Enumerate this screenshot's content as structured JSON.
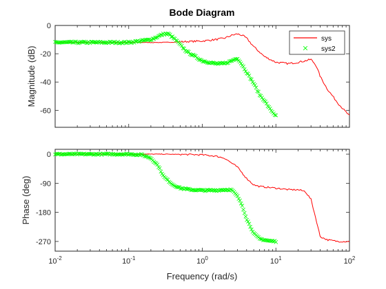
{
  "colors": {
    "sys": "#ff0000",
    "sys2": "#00ff00"
  },
  "chart_data": {
    "type": "line",
    "title": "Bode Diagram",
    "xlabel": "Frequency (rad/s)",
    "x_scale": "log",
    "xlim": [
      0.01,
      100
    ],
    "x_ticks": [
      0.01,
      0.1,
      1,
      10,
      100
    ],
    "x_tick_labels": [
      {
        "base": "10",
        "exp": "-2"
      },
      {
        "base": "10",
        "exp": "-1"
      },
      {
        "base": "10",
        "exp": "0"
      },
      {
        "base": "10",
        "exp": "1"
      },
      {
        "base": "10",
        "exp": "2"
      }
    ],
    "grid": false,
    "legend": {
      "placement": "top-right",
      "entries": [
        "sys",
        "sys2"
      ]
    },
    "panels": [
      {
        "ylabel": "Magnitude (dB)",
        "ylim": [
          -72,
          0
        ],
        "y_ticks": [
          0,
          -20,
          -40,
          -60
        ],
        "y_tick_labels": [
          "0",
          "-20",
          "-40",
          "-60"
        ],
        "series": [
          {
            "name": "sys",
            "style": "line",
            "x": [
              0.01,
              0.03,
              0.1,
              0.3,
              1,
              1.5,
              2,
              2.5,
              3,
              3.5,
              4,
              5,
              7,
              10,
              15,
              20,
              25,
              30,
              35,
              40,
              50,
              70,
              100
            ],
            "y": [
              -12,
              -12,
              -12,
              -12,
              -11,
              -10,
              -9,
              -7,
              -6,
              -7,
              -9,
              -15,
              -22,
              -26,
              -27,
              -26,
              -25,
              -24,
              -28,
              -36,
              -45,
              -55,
              -64
            ]
          },
          {
            "name": "sys2",
            "style": "marker-x",
            "x": [
              0.01,
              0.03,
              0.1,
              0.2,
              0.3,
              0.35,
              0.45,
              0.6,
              0.8,
              1,
              1.5,
              2,
              2.5,
              3,
              3.5,
              4,
              5,
              6,
              7,
              8,
              10
            ],
            "y": [
              -12,
              -12,
              -12,
              -10,
              -6,
              -6,
              -11,
              -18,
              -22,
              -25,
              -27,
              -27,
              -25,
              -23,
              -28,
              -33,
              -41,
              -49,
              -53,
              -58,
              -64
            ]
          }
        ]
      },
      {
        "ylabel": "Phase (deg)",
        "ylim": [
          -300,
          15
        ],
        "y_ticks": [
          0,
          -90,
          -180,
          -270
        ],
        "y_tick_labels": [
          "0",
          "-90",
          "-180",
          "-270"
        ],
        "series": [
          {
            "name": "sys",
            "style": "line",
            "x": [
              0.01,
              0.03,
              0.1,
              0.3,
              0.6,
              1,
              1.5,
              2,
              3,
              4,
              5,
              6,
              10,
              15,
              20,
              25,
              30,
              35,
              40,
              50,
              70,
              100
            ],
            "y": [
              0,
              0,
              0,
              0,
              -1,
              -2,
              -6,
              -12,
              -40,
              -75,
              -95,
              -100,
              -105,
              -110,
              -110,
              -115,
              -140,
              -200,
              -255,
              -265,
              -270,
              -270
            ]
          },
          {
            "name": "sys2",
            "style": "marker-x",
            "x": [
              0.01,
              0.03,
              0.1,
              0.15,
              0.2,
              0.25,
              0.3,
              0.4,
              0.5,
              0.7,
              1,
              1.5,
              2,
              2.5,
              3,
              3.5,
              4,
              5,
              6,
              8,
              10
            ],
            "y": [
              0,
              0,
              0,
              -2,
              -12,
              -35,
              -70,
              -95,
              -105,
              -110,
              -112,
              -112,
              -110,
              -110,
              -130,
              -160,
              -200,
              -245,
              -262,
              -268,
              -270
            ]
          }
        ]
      }
    ]
  }
}
